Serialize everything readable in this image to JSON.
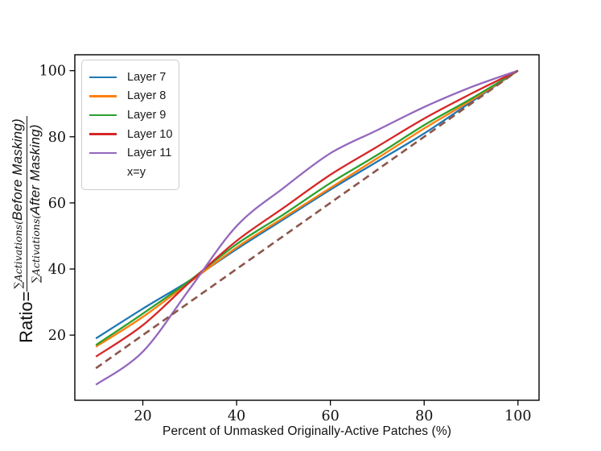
{
  "figure": {
    "background": "#ffffff",
    "text_color": "#111111",
    "xlabel": "Percent of Unmasked Originally-Active Patches (%)",
    "ylabel": {
      "prefix": "Ratio=",
      "numerator": {
        "sum": "∑",
        "func": "Activations(",
        "arg": "Before Masking)"
      },
      "denominator": {
        "sum": "∑",
        "func": "Activations(",
        "arg": "After Masking)"
      }
    }
  },
  "chart_data": {
    "type": "line",
    "title": "",
    "xlabel": "Percent of Unmasked Originally-Active Patches (%)",
    "ylabel": "Ratio = ∑Activations(Before Masking) / ∑Activations(After Masking)",
    "x": [
      10,
      20,
      30,
      40,
      50,
      60,
      70,
      80,
      90,
      100
    ],
    "series": [
      {
        "name": "Layer 7",
        "color": "#1f77b4",
        "style": "solid",
        "values": [
          19,
          28,
          36.5,
          46,
          55,
          64,
          72.5,
          81,
          90.5,
          100
        ]
      },
      {
        "name": "Layer 8",
        "color": "#ff7f0e",
        "style": "solid",
        "values": [
          16.5,
          25.5,
          36,
          46.5,
          55.5,
          64.5,
          73.5,
          82.5,
          91,
          100
        ]
      },
      {
        "name": "Layer 9",
        "color": "#2ca02c",
        "style": "solid",
        "values": [
          17,
          26.5,
          36.5,
          47.5,
          56.5,
          66,
          74.5,
          83.5,
          91.5,
          100
        ]
      },
      {
        "name": "Layer 10",
        "color": "#d62728",
        "style": "solid",
        "values": [
          13.5,
          23,
          36,
          48.5,
          58.5,
          68.5,
          77,
          85.5,
          93,
          100
        ]
      },
      {
        "name": "Layer 11",
        "color": "#9467bd",
        "style": "solid",
        "values": [
          5,
          15,
          34,
          53,
          64.5,
          75,
          82,
          89,
          95,
          100
        ]
      },
      {
        "name": "x=y",
        "color": "#8c564b",
        "style": "dashed",
        "values": [
          10,
          20,
          30,
          40,
          50,
          60,
          70,
          80,
          90,
          100
        ]
      }
    ],
    "xticks": [
      20,
      40,
      60,
      80,
      100
    ],
    "yticks": [
      20,
      40,
      60,
      80,
      100
    ],
    "xlim": [
      5.5,
      104.5
    ],
    "ylim": [
      0.3,
      104.8
    ],
    "grid": false,
    "legend_position": "upper left"
  }
}
